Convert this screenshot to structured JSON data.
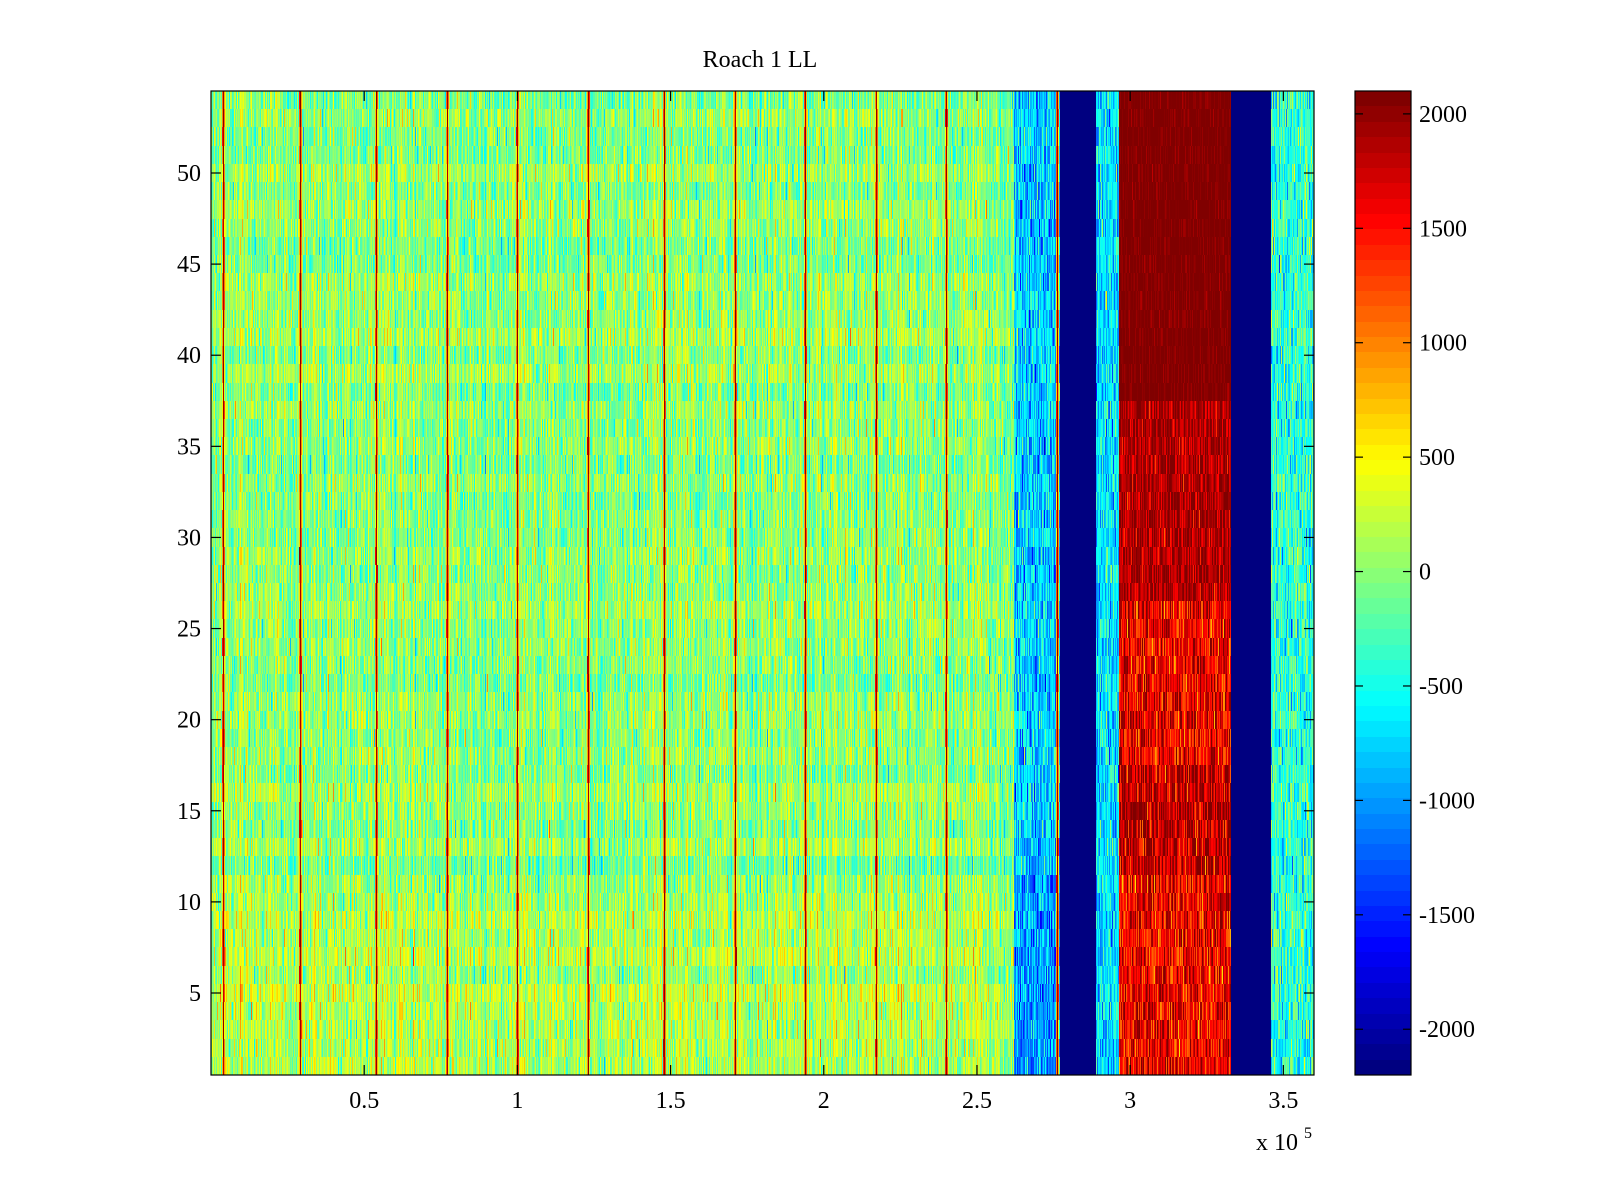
{
  "chart_data": {
    "type": "heatmap",
    "title": "Roach 1 LL",
    "xlabel": "",
    "ylabel": "",
    "x_multiplier_label": {
      "base": "x 10",
      "exponent": "5"
    },
    "x_range": [
      0,
      360000
    ],
    "y_range": [
      0.5,
      54.5
    ],
    "x_ticks": [
      {
        "value": 50000,
        "label": "0.5"
      },
      {
        "value": 100000,
        "label": "1"
      },
      {
        "value": 150000,
        "label": "1.5"
      },
      {
        "value": 200000,
        "label": "2"
      },
      {
        "value": 250000,
        "label": "2.5"
      },
      {
        "value": 300000,
        "label": "3"
      },
      {
        "value": 350000,
        "label": "3.5"
      }
    ],
    "y_ticks": [
      {
        "value": 5,
        "label": "5"
      },
      {
        "value": 10,
        "label": "10"
      },
      {
        "value": 15,
        "label": "15"
      },
      {
        "value": 20,
        "label": "20"
      },
      {
        "value": 25,
        "label": "25"
      },
      {
        "value": 30,
        "label": "30"
      },
      {
        "value": 35,
        "label": "35"
      },
      {
        "value": 40,
        "label": "40"
      },
      {
        "value": 45,
        "label": "45"
      },
      {
        "value": 50,
        "label": "50"
      }
    ],
    "colormap": "jet",
    "color_range": [
      -2200,
      2100
    ],
    "colorbar_ticks": [
      {
        "value": 2000,
        "label": "2000"
      },
      {
        "value": 1500,
        "label": "1500"
      },
      {
        "value": 1000,
        "label": "1000"
      },
      {
        "value": 500,
        "label": "500"
      },
      {
        "value": 0,
        "label": "0"
      },
      {
        "value": -500,
        "label": "-500"
      },
      {
        "value": -1000,
        "label": "-1000"
      },
      {
        "value": -1500,
        "label": "-1500"
      },
      {
        "value": -2000,
        "label": "-2000"
      }
    ],
    "rows": 54,
    "background_mean": 0,
    "background_noise": 300,
    "vertical_spike_lines_x": [
      4000,
      29000,
      54000,
      77000,
      100000,
      123000,
      148000,
      171000,
      194000,
      217000,
      240000,
      276000
    ],
    "regions": [
      {
        "x_start": 0,
        "x_end": 262000,
        "mean": 0,
        "description": "noise"
      },
      {
        "x_start": 262000,
        "x_end": 277000,
        "mean": -750
      },
      {
        "x_start": 277000,
        "x_end": 289000,
        "mean": -2200
      },
      {
        "x_start": 289000,
        "x_end": 296500,
        "mean": -750
      },
      {
        "x_start": 296500,
        "x_end": 333000,
        "mean_by_row": "high: ~2100 for rows 38-54, ~1500-2100 for rows 1-37"
      },
      {
        "x_start": 333000,
        "x_end": 346000,
        "mean": -2200
      },
      {
        "x_start": 346000,
        "x_end": 360000,
        "mean": -400
      }
    ]
  }
}
